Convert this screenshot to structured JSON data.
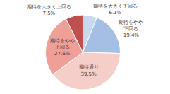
{
  "chart_data": {
    "type": "pie",
    "categories": [
      "期待を大きく下回る",
      "期待をやや\n下回る",
      "期待通り",
      "期待をやや\n上回る",
      "期待を大きく上回る"
    ],
    "values": [
      6.1,
      19.4,
      39.5,
      27.6,
      7.5
    ],
    "value_labels": [
      "6.1%",
      "19.4%",
      "39.5%",
      "27.6%",
      "7.5%"
    ],
    "colors": [
      "#c6d9f1",
      "#a4bfe3",
      "#f5cdc9",
      "#ef9f98",
      "#c0504d"
    ],
    "data_labels": true,
    "legend": false
  }
}
